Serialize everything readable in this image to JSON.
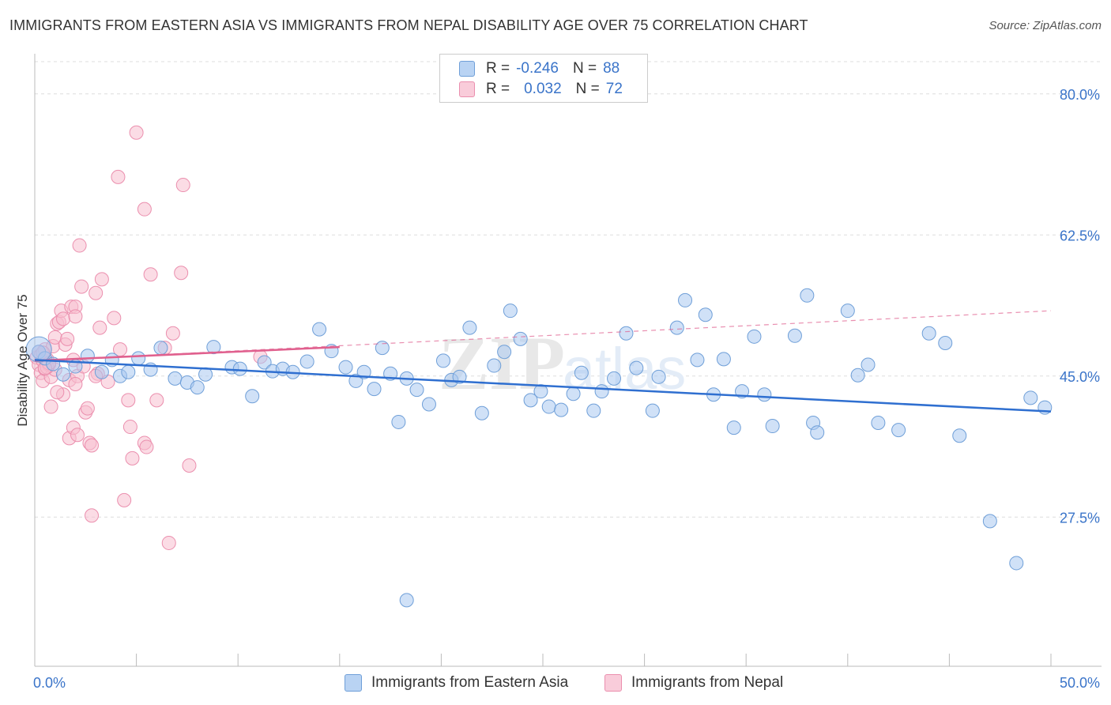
{
  "header": {
    "title": "IMMIGRANTS FROM EASTERN ASIA VS IMMIGRANTS FROM NEPAL DISABILITY AGE OVER 75 CORRELATION CHART",
    "source": "Source: ZipAtlas.com"
  },
  "legend": {
    "rows": [
      {
        "r_label": "R =",
        "r_value": "-0.246",
        "n_label": "N =",
        "n_value": "88"
      },
      {
        "r_label": "R =",
        "r_value": "0.032",
        "n_label": "N =",
        "n_value": "72"
      }
    ]
  },
  "watermark": {
    "zip": "ZIP",
    "atlas": "atlas"
  },
  "colors": {
    "blue_fill": "#a9c8f0",
    "blue_stroke": "#6f9fd8",
    "blue_line": "#2f6fd0",
    "pink_fill": "#f7bfd0",
    "pink_stroke": "#eb8fae",
    "pink_line": "#e0608e",
    "tick_label": "#3a74c9",
    "grid": "#dddddd"
  },
  "chart_data": {
    "type": "scatter",
    "title": "IMMIGRANTS FROM EASTERN ASIA VS IMMIGRANTS FROM NEPAL DISABILITY AGE OVER 75 CORRELATION CHART",
    "xlabel": "",
    "ylabel": "Disability Age Over 75",
    "xlim": [
      0,
      50
    ],
    "ylim": [
      9,
      84
    ],
    "x_tick_labels": [
      "0.0%",
      "50.0%"
    ],
    "y_ticks": [
      27.5,
      45.0,
      62.5,
      80.0
    ],
    "y_tick_labels": [
      "27.5%",
      "45.0%",
      "62.5%",
      "80.0%"
    ],
    "grid": true,
    "legend_position": "top-center",
    "series": [
      {
        "name": "Immigrants from Eastern Asia",
        "color": "#a9c8f0",
        "trend": {
          "x": [
            0,
            50
          ],
          "y": [
            47.0,
            40.6
          ],
          "style": "solid"
        },
        "points": [
          [
            0.2,
            48.0
          ],
          [
            0.5,
            47.2
          ],
          [
            0.9,
            46.5
          ],
          [
            1.4,
            45.2
          ],
          [
            2.0,
            46.2
          ],
          [
            2.6,
            47.5
          ],
          [
            3.3,
            45.5
          ],
          [
            3.8,
            47.0
          ],
          [
            4.2,
            45.0
          ],
          [
            4.6,
            45.5
          ],
          [
            5.1,
            47.2
          ],
          [
            5.7,
            45.8
          ],
          [
            6.2,
            48.5
          ],
          [
            6.9,
            44.7
          ],
          [
            7.5,
            44.2
          ],
          [
            8.0,
            43.6
          ],
          [
            8.4,
            45.2
          ],
          [
            8.8,
            48.6
          ],
          [
            9.7,
            46.1
          ],
          [
            10.1,
            45.9
          ],
          [
            10.7,
            42.5
          ],
          [
            11.3,
            46.7
          ],
          [
            11.7,
            45.6
          ],
          [
            12.2,
            45.9
          ],
          [
            12.7,
            45.5
          ],
          [
            13.4,
            46.8
          ],
          [
            14.0,
            50.8
          ],
          [
            14.6,
            48.1
          ],
          [
            15.3,
            46.1
          ],
          [
            15.8,
            44.4
          ],
          [
            16.2,
            45.5
          ],
          [
            16.7,
            43.4
          ],
          [
            17.1,
            48.5
          ],
          [
            17.5,
            45.3
          ],
          [
            17.9,
            39.3
          ],
          [
            18.3,
            44.7
          ],
          [
            18.8,
            43.3
          ],
          [
            19.4,
            41.5
          ],
          [
            20.1,
            46.9
          ],
          [
            20.5,
            44.5
          ],
          [
            20.9,
            44.9
          ],
          [
            21.4,
            51.0
          ],
          [
            22.0,
            40.4
          ],
          [
            22.6,
            46.3
          ],
          [
            23.1,
            48.0
          ],
          [
            23.4,
            53.1
          ],
          [
            23.9,
            49.6
          ],
          [
            24.4,
            42.0
          ],
          [
            24.9,
            43.1
          ],
          [
            25.3,
            41.2
          ],
          [
            25.9,
            40.8
          ],
          [
            26.5,
            42.8
          ],
          [
            26.9,
            45.4
          ],
          [
            27.5,
            40.7
          ],
          [
            27.9,
            43.1
          ],
          [
            28.5,
            44.7
          ],
          [
            29.1,
            50.3
          ],
          [
            29.6,
            46.0
          ],
          [
            30.4,
            40.7
          ],
          [
            30.7,
            44.9
          ],
          [
            31.6,
            51.0
          ],
          [
            32.0,
            54.4
          ],
          [
            32.6,
            47.0
          ],
          [
            33.0,
            52.6
          ],
          [
            33.4,
            42.7
          ],
          [
            33.9,
            47.1
          ],
          [
            34.4,
            38.6
          ],
          [
            34.8,
            43.1
          ],
          [
            35.4,
            49.9
          ],
          [
            35.9,
            42.7
          ],
          [
            36.3,
            38.8
          ],
          [
            37.4,
            50.0
          ],
          [
            38.0,
            55.0
          ],
          [
            38.3,
            39.2
          ],
          [
            40.0,
            53.1
          ],
          [
            40.5,
            45.1
          ],
          [
            41.0,
            46.4
          ],
          [
            41.5,
            39.2
          ],
          [
            42.5,
            38.3
          ],
          [
            44.0,
            50.3
          ],
          [
            44.8,
            49.1
          ],
          [
            45.5,
            37.6
          ],
          [
            38.5,
            38.0
          ],
          [
            47.0,
            27.0
          ],
          [
            48.3,
            21.8
          ],
          [
            49.0,
            42.3
          ],
          [
            18.3,
            17.2
          ],
          [
            49.7,
            41.1
          ]
        ]
      },
      {
        "name": "Immigrants from Nepal",
        "color": "#f7bfd0",
        "trend": {
          "x": [
            0,
            15
          ],
          "y": [
            46.9,
            48.6
          ],
          "style": "solid"
        },
        "trend_extended": {
          "x": [
            0,
            50
          ],
          "y": [
            46.9,
            53.1
          ],
          "style": "dashed"
        },
        "points": [
          [
            0.1,
            47.3
          ],
          [
            0.2,
            48.0
          ],
          [
            0.2,
            46.4
          ],
          [
            0.3,
            45.4
          ],
          [
            0.3,
            47.6
          ],
          [
            0.4,
            46.9
          ],
          [
            0.4,
            44.4
          ],
          [
            0.5,
            48.3
          ],
          [
            0.5,
            45.9
          ],
          [
            0.6,
            47.1
          ],
          [
            0.7,
            46.4
          ],
          [
            0.8,
            44.9
          ],
          [
            0.8,
            41.2
          ],
          [
            0.9,
            48.7
          ],
          [
            1.0,
            49.8
          ],
          [
            1.0,
            45.8
          ],
          [
            1.1,
            51.5
          ],
          [
            1.2,
            51.7
          ],
          [
            1.3,
            53.1
          ],
          [
            1.4,
            52.1
          ],
          [
            1.4,
            42.7
          ],
          [
            1.5,
            48.9
          ],
          [
            1.6,
            49.6
          ],
          [
            1.7,
            44.5
          ],
          [
            1.7,
            37.3
          ],
          [
            1.8,
            53.6
          ],
          [
            1.9,
            47.0
          ],
          [
            1.9,
            38.6
          ],
          [
            2.0,
            53.6
          ],
          [
            2.0,
            52.4
          ],
          [
            2.1,
            45.0
          ],
          [
            2.1,
            37.7
          ],
          [
            2.2,
            61.2
          ],
          [
            2.3,
            56.1
          ],
          [
            2.4,
            46.2
          ],
          [
            2.5,
            40.5
          ],
          [
            2.6,
            41.0
          ],
          [
            2.7,
            36.7
          ],
          [
            2.8,
            36.4
          ],
          [
            2.8,
            27.7
          ],
          [
            3.0,
            55.3
          ],
          [
            3.1,
            45.3
          ],
          [
            3.2,
            51.0
          ],
          [
            3.3,
            57.0
          ],
          [
            3.6,
            44.3
          ],
          [
            3.9,
            52.2
          ],
          [
            4.1,
            69.7
          ],
          [
            4.2,
            48.3
          ],
          [
            4.4,
            29.6
          ],
          [
            4.6,
            42.0
          ],
          [
            4.7,
            38.7
          ],
          [
            4.8,
            34.8
          ],
          [
            5.0,
            75.2
          ],
          [
            5.4,
            65.7
          ],
          [
            5.4,
            36.7
          ],
          [
            5.5,
            36.2
          ],
          [
            5.7,
            57.6
          ],
          [
            6.0,
            42.0
          ],
          [
            6.4,
            48.5
          ],
          [
            6.6,
            24.3
          ],
          [
            6.8,
            50.3
          ],
          [
            7.2,
            57.8
          ],
          [
            7.6,
            33.9
          ],
          [
            7.3,
            68.7
          ],
          [
            11.1,
            47.4
          ],
          [
            0.6,
            46.1
          ],
          [
            1.1,
            43.0
          ],
          [
            0.4,
            47.9
          ],
          [
            0.7,
            46.6
          ],
          [
            0.5,
            46.0
          ],
          [
            2.0,
            44.0
          ],
          [
            3.0,
            45.0
          ]
        ]
      }
    ]
  },
  "bottom_legend": {
    "items": [
      {
        "label": "Immigrants from Eastern Asia"
      },
      {
        "label": "Immigrants from Nepal"
      }
    ]
  }
}
